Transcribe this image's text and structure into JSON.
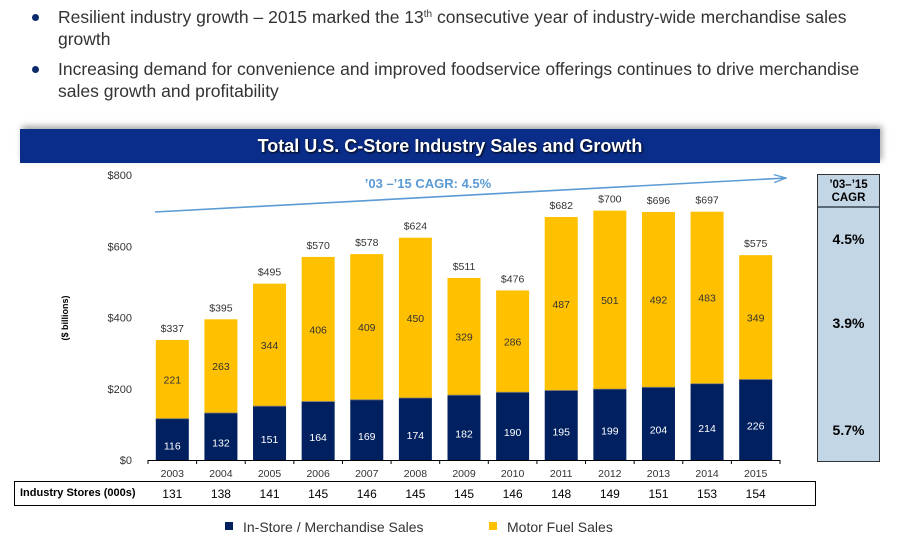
{
  "bullets": [
    {
      "pre": "Resilient industry growth – 2015 marked the 13",
      "sup": "th",
      "post": " consecutive year of industry-wide merchandise sales growth"
    },
    {
      "pre": "Increasing demand for convenience and improved foodservice offerings continues to drive merchandise sales growth and profitability",
      "sup": "",
      "post": ""
    }
  ],
  "title": "Total U.S. C-Store Industry Sales and Growth",
  "colors": {
    "merchandise": "#002060",
    "fuel": "#ffc000",
    "title_bar": "#0a2d8a",
    "arrow": "#5b9bd5",
    "cagr_box": "#c3d6e6"
  },
  "chart_data": {
    "type": "bar",
    "stacked": true,
    "title": "Total U.S. C-Store Industry Sales and Growth",
    "xlabel": "",
    "ylabel": "($ billions)",
    "ylim": [
      0,
      800
    ],
    "yticks": [
      "$0",
      "$200",
      "$400",
      "$600",
      "$800"
    ],
    "ytick_values": [
      0,
      200,
      400,
      600,
      800
    ],
    "categories": [
      "2003",
      "2004",
      "2005",
      "2006",
      "2007",
      "2008",
      "2009",
      "2010",
      "2011",
      "2012",
      "2013",
      "2014",
      "2015"
    ],
    "series": [
      {
        "name": "In-Store / Merchandise Sales",
        "values": [
          116,
          132,
          151,
          164,
          169,
          174,
          182,
          190,
          195,
          199,
          204,
          214,
          226
        ]
      },
      {
        "name": "Motor Fuel Sales",
        "values": [
          221,
          263,
          344,
          406,
          409,
          450,
          329,
          286,
          487,
          501,
          492,
          483,
          349
        ]
      }
    ],
    "totals": [
      "$337",
      "$395",
      "$495",
      "$570",
      "$578",
      "$624",
      "$511",
      "$476",
      "$682",
      "$700",
      "$696",
      "$697",
      "$575"
    ],
    "annotation": "’03 –’15 CAGR: 4.5%",
    "legend": [
      "In-Store / Merchandise Sales",
      "Motor Fuel Sales"
    ],
    "legend_position": "bottom",
    "grid": false
  },
  "cagr_table": {
    "header": [
      "’03–’15",
      "CAGR"
    ],
    "total": "4.5%",
    "fuel": "3.9%",
    "merchandise": "5.7%"
  },
  "stores": {
    "label": "Industry Stores (000s)",
    "values": [
      "131",
      "138",
      "141",
      "145",
      "146",
      "145",
      "145",
      "146",
      "148",
      "149",
      "151",
      "153",
      "154"
    ]
  }
}
